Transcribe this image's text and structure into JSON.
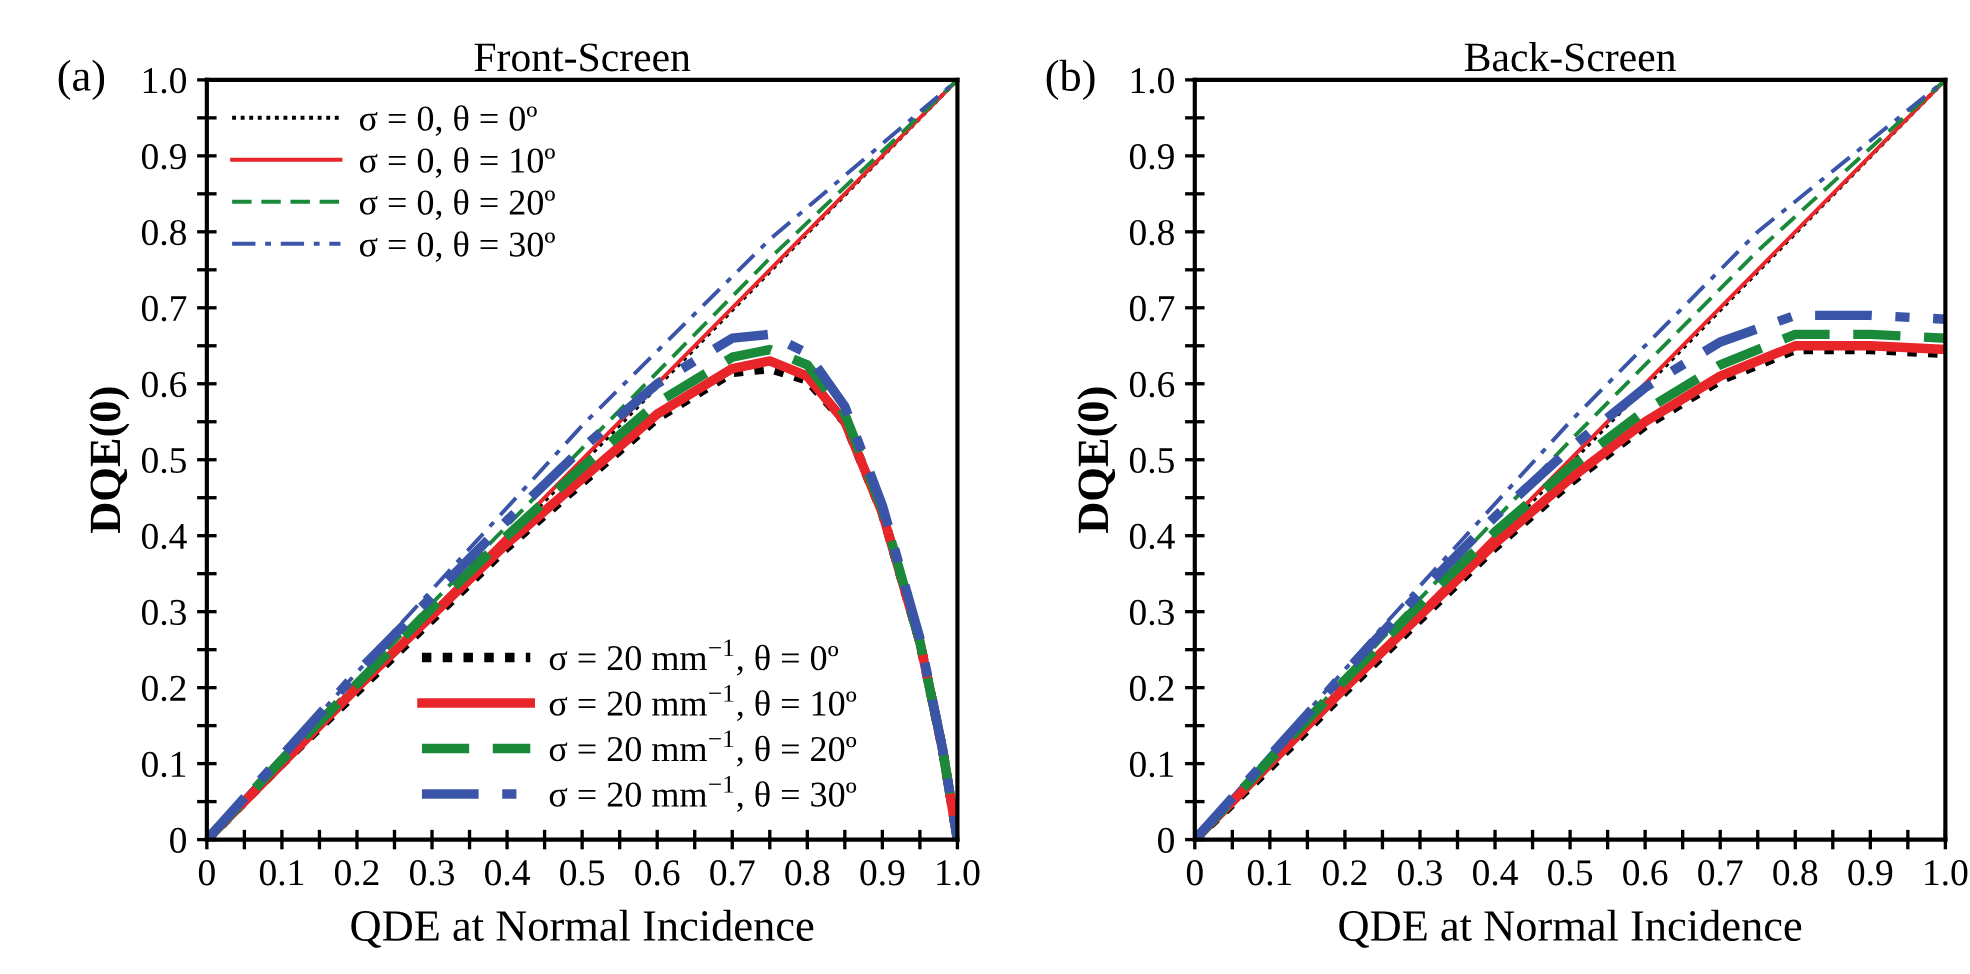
{
  "chart_data": [
    {
      "type": "line",
      "title": "Front-Screen",
      "xlabel": "QDE at Normal Incidence",
      "ylabel": "DQE(0)",
      "annotations": [
        "(a)"
      ],
      "legend": [
        "top left",
        "bottom right"
      ],
      "grid": false,
      "xlim": [
        0,
        1
      ],
      "ylim": [
        0,
        1
      ],
      "xticks": [
        0,
        {
          "value": 0.05,
          "label": null
        },
        0.1,
        {
          "value": 0.15,
          "label": null
        },
        0.2,
        {
          "value": 0.25,
          "label": null
        },
        0.3,
        {
          "value": 0.35,
          "label": null
        },
        0.4,
        {
          "value": 0.45,
          "label": null
        },
        0.5,
        {
          "value": 0.55,
          "label": null
        },
        0.6,
        {
          "value": 0.65,
          "label": null
        },
        0.7,
        {
          "value": 0.75,
          "label": null
        },
        0.8,
        {
          "value": 0.85,
          "label": null
        },
        0.9,
        {
          "value": 0.95,
          "label": null
        },
        {
          "value": 1,
          "label": "1.0"
        }
      ],
      "yticks": [
        0,
        {
          "value": 0.05,
          "label": null
        },
        0.1,
        {
          "value": 0.15,
          "label": null
        },
        0.2,
        {
          "value": 0.25,
          "label": null
        },
        0.3,
        {
          "value": 0.35,
          "label": null
        },
        0.4,
        {
          "value": 0.45,
          "label": null
        },
        0.5,
        {
          "value": 0.55,
          "label": null
        },
        0.6,
        {
          "value": 0.65,
          "label": null
        },
        0.7,
        {
          "value": 0.75,
          "label": null
        },
        0.8,
        {
          "value": 0.85,
          "label": null
        },
        0.9,
        {
          "value": 0.95,
          "label": null
        },
        {
          "value": 1,
          "label": "1.0"
        }
      ],
      "series": [
        {
          "name": "σ = 0, θ = 0º",
          "color": "#000000",
          "line_style": "dotted",
          "x": [
            0,
            0.5,
            1
          ],
          "values": [
            0,
            0.495,
            1
          ]
        },
        {
          "name": "σ = 0, θ = 10º",
          "color": "#e8262a",
          "line_style": "solid",
          "x": [
            0,
            0.5,
            1
          ],
          "values": [
            0,
            0.5,
            1
          ]
        },
        {
          "name": "σ = 0, θ = 20º",
          "color": "#1a8a3a",
          "line_style": "dashed",
          "x": [
            0,
            0.25,
            0.5,
            0.75,
            1
          ],
          "values": [
            0,
            0.26,
            0.515,
            0.765,
            1
          ]
        },
        {
          "name": "σ = 0, θ = 30º",
          "color": "#3a55a8",
          "line_style": "dashdot",
          "x": [
            0,
            0.25,
            0.5,
            0.75,
            1
          ],
          "values": [
            0,
            0.275,
            0.545,
            0.79,
            1
          ]
        },
        {
          "name": "σ = 20 mm$^{−1}$, θ = 0º",
          "color": "#000000",
          "line_style": "dotted",
          "x": [
            0,
            0.1,
            0.2,
            0.3,
            0.4,
            0.5,
            0.6,
            0.7,
            0.75,
            0.8,
            0.85,
            0.9,
            0.95,
            0.98,
            1
          ],
          "values": [
            0,
            0.1,
            0.195,
            0.29,
            0.385,
            0.47,
            0.555,
            0.615,
            0.62,
            0.605,
            0.55,
            0.43,
            0.26,
            0.12,
            0
          ]
        },
        {
          "name": "σ = 20 mm$^{−1}$, θ = 10º",
          "color": "#e8262a",
          "line_style": "solid",
          "x": [
            0,
            0.1,
            0.2,
            0.3,
            0.4,
            0.5,
            0.6,
            0.7,
            0.75,
            0.8,
            0.85,
            0.9,
            0.95,
            0.98,
            1
          ],
          "values": [
            0,
            0.1,
            0.2,
            0.295,
            0.39,
            0.475,
            0.56,
            0.62,
            0.63,
            0.61,
            0.55,
            0.43,
            0.26,
            0.12,
            0
          ]
        },
        {
          "name": "σ = 20 mm$^{−1}$, θ = 20º",
          "color": "#1a8a3a",
          "line_style": "dashed",
          "x": [
            0,
            0.1,
            0.2,
            0.3,
            0.4,
            0.5,
            0.6,
            0.7,
            0.75,
            0.8,
            0.85,
            0.9,
            0.95,
            0.98,
            1
          ],
          "values": [
            0,
            0.105,
            0.205,
            0.305,
            0.4,
            0.49,
            0.575,
            0.635,
            0.645,
            0.625,
            0.56,
            0.435,
            0.26,
            0.12,
            0
          ]
        },
        {
          "name": "σ = 20 mm$^{−1}$, θ = 30º",
          "color": "#3a55a8",
          "line_style": "dashdot",
          "x": [
            0,
            0.1,
            0.2,
            0.3,
            0.4,
            0.5,
            0.6,
            0.7,
            0.75,
            0.8,
            0.85,
            0.9,
            0.95,
            0.98,
            1
          ],
          "values": [
            0,
            0.11,
            0.22,
            0.32,
            0.42,
            0.515,
            0.6,
            0.66,
            0.665,
            0.64,
            0.57,
            0.44,
            0.265,
            0.12,
            0
          ]
        }
      ]
    },
    {
      "type": "line",
      "title": "Back-Screen",
      "xlabel": "QDE at Normal Incidence",
      "ylabel": "DQE(0)",
      "annotations": [
        "(b)"
      ],
      "grid": false,
      "xlim": [
        0,
        1
      ],
      "ylim": [
        0,
        1
      ],
      "xticks": [
        0,
        {
          "value": 0.05,
          "label": null
        },
        0.1,
        {
          "value": 0.15,
          "label": null
        },
        0.2,
        {
          "value": 0.25,
          "label": null
        },
        0.3,
        {
          "value": 0.35,
          "label": null
        },
        0.4,
        {
          "value": 0.45,
          "label": null
        },
        0.5,
        {
          "value": 0.55,
          "label": null
        },
        0.6,
        {
          "value": 0.65,
          "label": null
        },
        0.7,
        {
          "value": 0.75,
          "label": null
        },
        0.8,
        {
          "value": 0.85,
          "label": null
        },
        0.9,
        {
          "value": 0.95,
          "label": null
        },
        {
          "value": 1,
          "label": "1.0"
        }
      ],
      "yticks": [
        0,
        {
          "value": 0.05,
          "label": null
        },
        0.1,
        {
          "value": 0.15,
          "label": null
        },
        0.2,
        {
          "value": 0.25,
          "label": null
        },
        0.3,
        {
          "value": 0.35,
          "label": null
        },
        0.4,
        {
          "value": 0.45,
          "label": null
        },
        0.5,
        {
          "value": 0.55,
          "label": null
        },
        0.6,
        {
          "value": 0.65,
          "label": null
        },
        0.7,
        {
          "value": 0.75,
          "label": null
        },
        0.8,
        {
          "value": 0.85,
          "label": null
        },
        0.9,
        {
          "value": 0.95,
          "label": null
        },
        {
          "value": 1,
          "label": "1.0"
        }
      ],
      "series": [
        {
          "color": "#000000",
          "line_style": "dotted",
          "x": [
            0,
            0.5,
            1
          ],
          "values": [
            0,
            0.495,
            1
          ]
        },
        {
          "color": "#e8262a",
          "line_style": "solid",
          "x": [
            0,
            0.5,
            1
          ],
          "values": [
            0,
            0.5,
            1
          ]
        },
        {
          "color": "#1a8a3a",
          "line_style": "dashed",
          "x": [
            0,
            0.25,
            0.5,
            0.75,
            1
          ],
          "values": [
            0,
            0.265,
            0.525,
            0.775,
            1
          ]
        },
        {
          "color": "#3a55a8",
          "line_style": "dashdot",
          "x": [
            0,
            0.25,
            0.5,
            0.75,
            1
          ],
          "values": [
            0,
            0.28,
            0.55,
            0.8,
            1
          ]
        },
        {
          "color": "#000000",
          "line_style": "dotted",
          "x": [
            0,
            0.1,
            0.2,
            0.3,
            0.4,
            0.5,
            0.6,
            0.7,
            0.8,
            0.9,
            1
          ],
          "values": [
            0,
            0.095,
            0.195,
            0.29,
            0.385,
            0.47,
            0.545,
            0.605,
            0.645,
            0.645,
            0.64
          ]
        },
        {
          "color": "#e8262a",
          "line_style": "solid",
          "x": [
            0,
            0.1,
            0.2,
            0.3,
            0.4,
            0.5,
            0.6,
            0.7,
            0.8,
            0.9,
            1
          ],
          "values": [
            0,
            0.1,
            0.2,
            0.295,
            0.39,
            0.475,
            0.55,
            0.61,
            0.65,
            0.65,
            0.645
          ]
        },
        {
          "color": "#1a8a3a",
          "line_style": "dashed",
          "x": [
            0,
            0.1,
            0.2,
            0.3,
            0.4,
            0.5,
            0.6,
            0.7,
            0.8,
            0.9,
            1
          ],
          "values": [
            0,
            0.105,
            0.21,
            0.31,
            0.405,
            0.49,
            0.565,
            0.625,
            0.665,
            0.665,
            0.66
          ]
        },
        {
          "color": "#3a55a8",
          "line_style": "dashdot",
          "x": [
            0,
            0.1,
            0.2,
            0.3,
            0.4,
            0.5,
            0.6,
            0.7,
            0.8,
            0.9,
            1
          ],
          "values": [
            0,
            0.11,
            0.22,
            0.325,
            0.425,
            0.515,
            0.595,
            0.655,
            0.69,
            0.69,
            0.685
          ]
        }
      ]
    }
  ]
}
